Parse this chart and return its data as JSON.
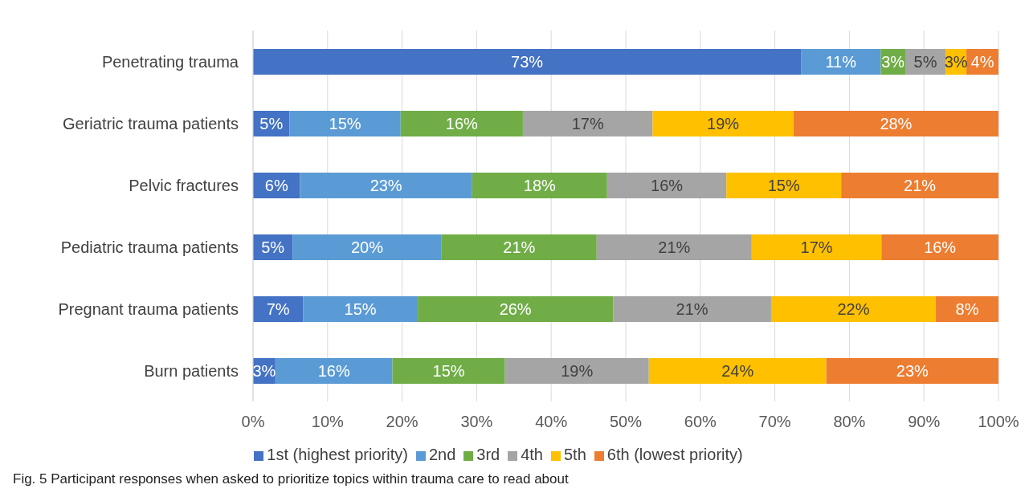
{
  "chart_data": {
    "type": "bar",
    "orientation": "horizontal",
    "stacked": true,
    "categories": [
      "Penetrating trauma",
      "Geriatric trauma patients",
      "Pelvic fractures",
      "Pediatric trauma patients",
      "Pregnant trauma patients",
      "Burn patients"
    ],
    "series": [
      {
        "name": "1st (highest priority)",
        "color": "#4472c4",
        "values": [
          73.5,
          4.9,
          6.3,
          5.3,
          6.7,
          3.0
        ],
        "value_labels": [
          "73%",
          "5%",
          "6%",
          "5%",
          "7%",
          "3%"
        ]
      },
      {
        "name": "2nd",
        "color": "#5b9bd5",
        "values": [
          10.7,
          14.9,
          23.1,
          20.0,
          15.4,
          15.7
        ],
        "value_labels": [
          "11%",
          "15%",
          "23%",
          "20%",
          "15%",
          "16%"
        ]
      },
      {
        "name": "3rd",
        "color": "#70ad47",
        "values": [
          3.3,
          16.4,
          18.1,
          20.8,
          26.2,
          15.1
        ],
        "value_labels": [
          "3%",
          "16%",
          "18%",
          "21%",
          "26%",
          "15%"
        ]
      },
      {
        "name": "4th",
        "color": "#a5a5a5",
        "values": [
          5.4,
          17.4,
          16.0,
          20.8,
          21.2,
          19.3
        ],
        "value_labels": [
          "5%",
          "17%",
          "16%",
          "21%",
          "21%",
          "19%"
        ]
      },
      {
        "name": "5th",
        "color": "#ffc000",
        "values": [
          2.8,
          18.9,
          15.4,
          17.4,
          22.1,
          23.8
        ],
        "value_labels": [
          "3%",
          "19%",
          "15%",
          "17%",
          "22%",
          "24%"
        ]
      },
      {
        "name": "6th (lowest priority)",
        "color": "#ed7d31",
        "values": [
          4.3,
          27.5,
          21.1,
          15.7,
          8.4,
          23.1
        ],
        "value_labels": [
          "4%",
          "28%",
          "21%",
          "16%",
          "8%",
          "23%"
        ]
      }
    ],
    "xlim": [
      0,
      100
    ],
    "xticks": [
      {
        "value": 0,
        "label": "0%"
      },
      {
        "value": 10,
        "label": "10%"
      },
      {
        "value": 20,
        "label": "20%"
      },
      {
        "value": 30,
        "label": "30%"
      },
      {
        "value": 40,
        "label": "40%"
      },
      {
        "value": 50,
        "label": "50%"
      },
      {
        "value": 60,
        "label": "60%"
      },
      {
        "value": 70,
        "label": "70%"
      },
      {
        "value": 80,
        "label": "80%"
      },
      {
        "value": 90,
        "label": "90%"
      },
      {
        "value": 100,
        "label": "100%"
      }
    ],
    "grid": "x",
    "legend": "bottom",
    "annotations": [
      "Fig. 5  Participant responses when asked to prioritize topics within trauma care to read about"
    ]
  }
}
